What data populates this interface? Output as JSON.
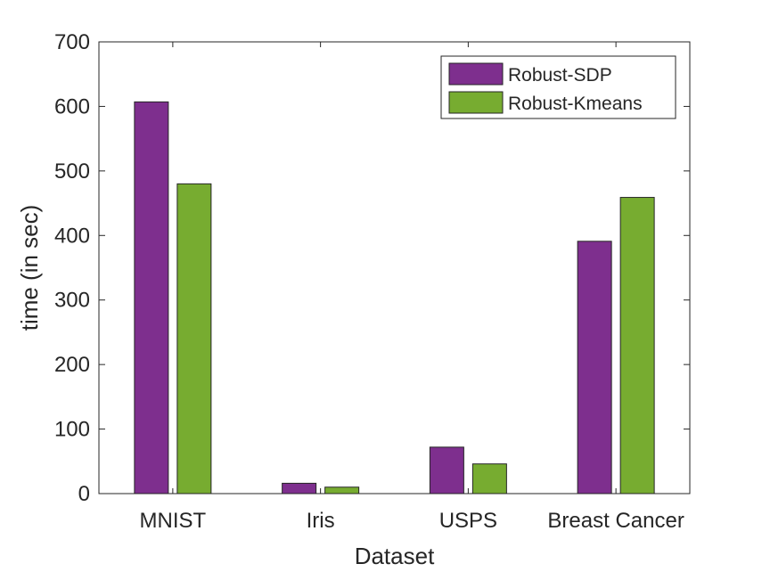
{
  "chart_data": {
    "type": "bar",
    "title": "",
    "xlabel": "Dataset",
    "ylabel": "time (in sec)",
    "categories": [
      "MNIST",
      "Iris",
      "USPS",
      "Breast Cancer"
    ],
    "series": [
      {
        "name": "Robust-SDP",
        "color": "#7e2f8e",
        "values": [
          607,
          16,
          72,
          391
        ]
      },
      {
        "name": "Robust-Kmeans",
        "color": "#77ac30",
        "values": [
          480,
          10,
          46,
          459
        ]
      }
    ],
    "ylim": [
      0,
      700
    ],
    "yticks": [
      0,
      100,
      200,
      300,
      400,
      500,
      600,
      700
    ],
    "grid": false,
    "legend_position": "top-right"
  }
}
